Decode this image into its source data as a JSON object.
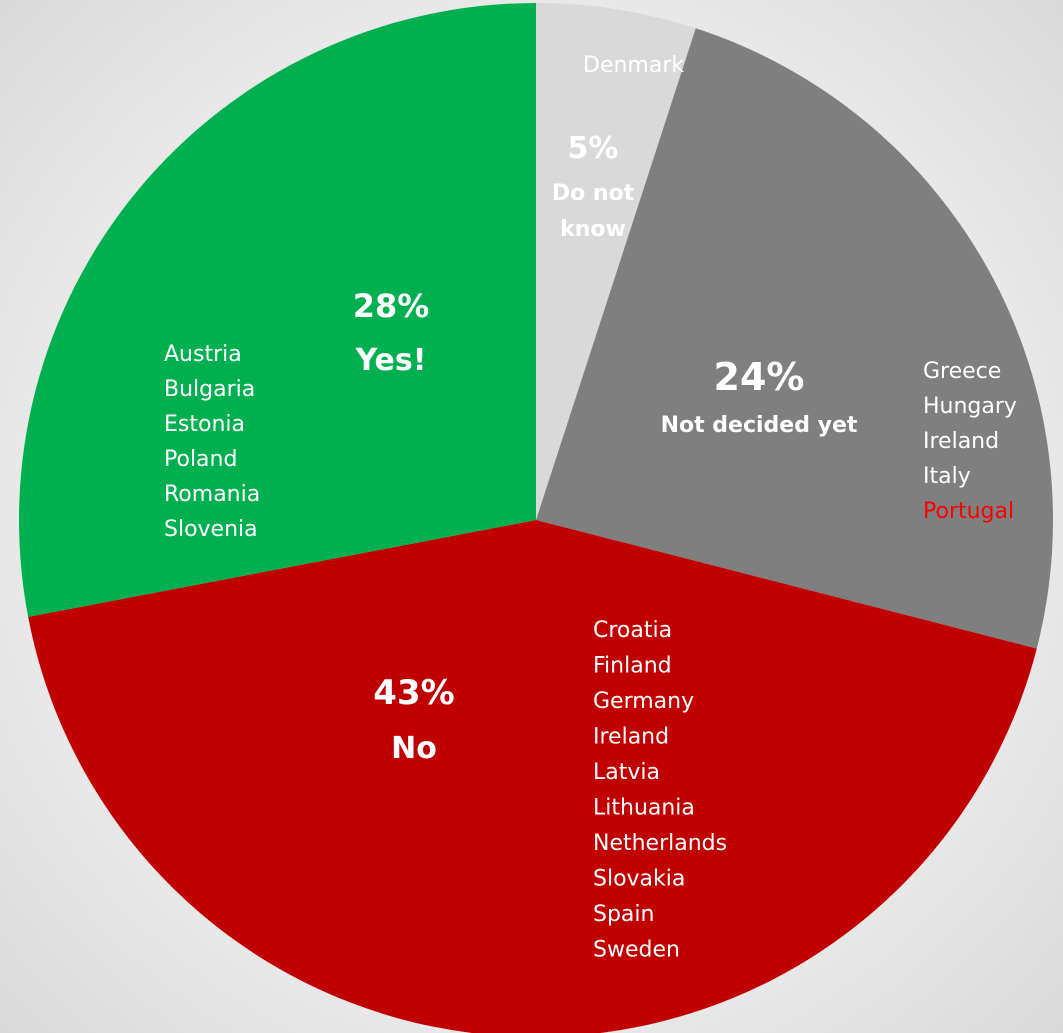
{
  "chart_data": {
    "type": "pie",
    "start_angle_deg": 0,
    "direction": "clockwise",
    "slices": [
      {
        "key": "do-not-know",
        "value": 5,
        "percent_label": "5%",
        "label": "Do not know",
        "color": "#d9d9d9",
        "countries": [
          {
            "name": "Denmark",
            "color": "#ffffff"
          }
        ]
      },
      {
        "key": "not-decided",
        "value": 24,
        "percent_label": "24%",
        "label": "Not decided yet",
        "color": "#7f7f7f",
        "countries": [
          {
            "name": "Greece",
            "color": "#ffffff"
          },
          {
            "name": "Hungary",
            "color": "#ffffff"
          },
          {
            "name": "Ireland",
            "color": "#ffffff"
          },
          {
            "name": "Italy",
            "color": "#ffffff"
          },
          {
            "name": "Portugal",
            "color": "#ff0000"
          }
        ]
      },
      {
        "key": "no",
        "value": 43,
        "percent_label": "43%",
        "label": "No",
        "color": "#c00000",
        "countries": [
          {
            "name": "Croatia",
            "color": "#ffffff"
          },
          {
            "name": "Finland",
            "color": "#ffffff"
          },
          {
            "name": "Germany",
            "color": "#ffffff"
          },
          {
            "name": "Ireland",
            "color": "#ffffff"
          },
          {
            "name": "Latvia",
            "color": "#ffffff"
          },
          {
            "name": "Lithuania",
            "color": "#ffffff"
          },
          {
            "name": "Netherlands",
            "color": "#ffffff"
          },
          {
            "name": "Slovakia",
            "color": "#ffffff"
          },
          {
            "name": "Spain",
            "color": "#ffffff"
          },
          {
            "name": "Sweden",
            "color": "#ffffff"
          }
        ]
      },
      {
        "key": "yes",
        "value": 28,
        "percent_label": "28%",
        "label": "Yes!",
        "color": "#00b050",
        "countries": [
          {
            "name": "Austria",
            "color": "#ffffff"
          },
          {
            "name": "Bulgaria",
            "color": "#ffffff"
          },
          {
            "name": "Estonia",
            "color": "#ffffff"
          },
          {
            "name": "Poland",
            "color": "#ffffff"
          },
          {
            "name": "Romania",
            "color": "#ffffff"
          },
          {
            "name": "Slovenia",
            "color": "#ffffff"
          }
        ]
      }
    ]
  }
}
